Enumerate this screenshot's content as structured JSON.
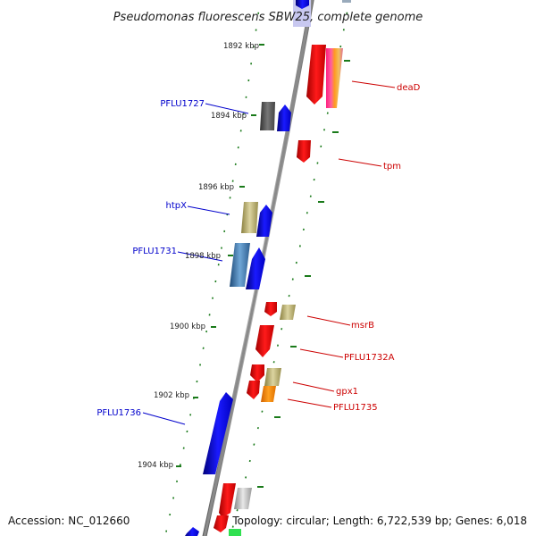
{
  "title": "Pseudomonas fluorescens SBW25, complete genome",
  "footer": {
    "accession": "Accession: NC_012660",
    "info": "Topology: circular; Length: 6,722,539 bp; Genes: 6,018"
  },
  "colors": {
    "forward_label": "#0000cc",
    "reverse_label": "#cc0000",
    "tick": "#1a7a1a",
    "backbone": "#8a8a8a"
  },
  "kbp_marks": [
    "1892 kbp",
    "1894 kbp",
    "1896 kbp",
    "1898 kbp",
    "1900 kbp",
    "1902 kbp",
    "1904 kbp"
  ],
  "gene_labels": {
    "forward": [
      "PFLU1727",
      "htpX",
      "PFLU1731",
      "PFLU1736"
    ],
    "reverse": [
      "deaD",
      "tpm",
      "msrB",
      "PFLU1732A",
      "gpx1",
      "PFLU1735"
    ]
  }
}
